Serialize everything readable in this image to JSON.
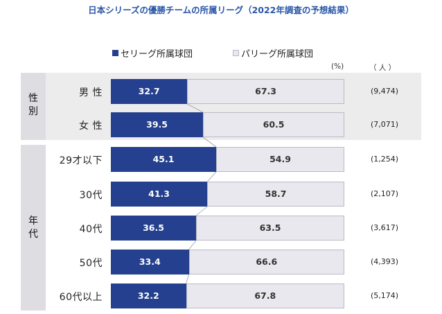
{
  "title": "日本シリーズの優勝チームの所属リーグ（2022年調査の予想結果）",
  "colors": {
    "central": "#24408e",
    "pacific": "#e8e8ee"
  },
  "units": {
    "percent": "(%)",
    "people": "（ 人 ）"
  },
  "chart_data": {
    "type": "bar",
    "stacked": true,
    "orientation": "horizontal",
    "title": "日本シリーズの優勝チームの所属リーグ（2022年調査の予想結果）",
    "legend": [
      "セリーグ所属球団",
      "パリーグ所属球団"
    ],
    "legend_position": "top",
    "xlim": [
      0,
      100
    ],
    "groups": [
      {
        "label": "性別",
        "rows": [
          {
            "label": "男 性",
            "central": 32.7,
            "pacific": 67.3,
            "central_label": "32.7",
            "pacific_label": "67.3",
            "n": "(9,474)"
          },
          {
            "label": "女 性",
            "central": 39.5,
            "pacific": 60.5,
            "central_label": "39.5",
            "pacific_label": "60.5",
            "n": "(7,071)"
          }
        ]
      },
      {
        "label": "年代",
        "rows": [
          {
            "label": "29才以下",
            "central": 45.1,
            "pacific": 54.9,
            "central_label": "45.1",
            "pacific_label": "54.9",
            "n": "(1,254)"
          },
          {
            "label": "30代",
            "central": 41.3,
            "pacific": 58.7,
            "central_label": "41.3",
            "pacific_label": "58.7",
            "n": "(2,107)"
          },
          {
            "label": "40代",
            "central": 36.5,
            "pacific": 63.5,
            "central_label": "36.5",
            "pacific_label": "63.5",
            "n": "(3,617)"
          },
          {
            "label": "50代",
            "central": 33.4,
            "pacific": 66.6,
            "central_label": "33.4",
            "pacific_label": "66.6",
            "n": "(4,393)"
          },
          {
            "label": "60代以上",
            "central": 32.2,
            "pacific": 67.8,
            "central_label": "32.2",
            "pacific_label": "67.8",
            "n": "(5,174)"
          }
        ]
      }
    ]
  }
}
